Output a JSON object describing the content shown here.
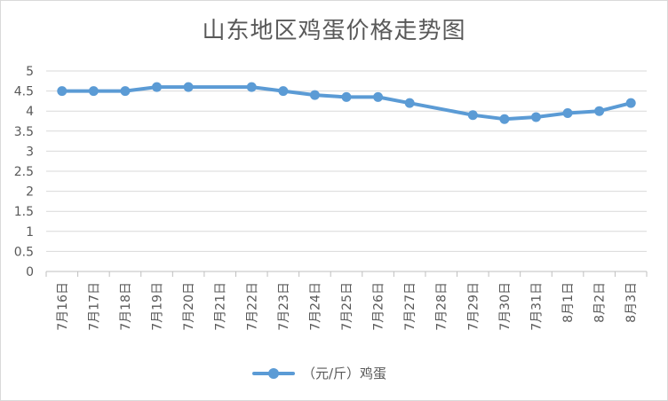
{
  "chart_data": {
    "type": "line",
    "title": "山东地区鸡蛋价格走势图",
    "categories": [
      "7月16日",
      "7月17日",
      "7月18日",
      "7月19日",
      "7月20日",
      "7月21日",
      "7月22日",
      "7月23日",
      "7月24日",
      "7月25日",
      "7月26日",
      "7月27日",
      "7月28日",
      "7月29日",
      "7月30日",
      "7月31日",
      "8月1日",
      "8月2日",
      "8月3日"
    ],
    "series": [
      {
        "name": "（元/斤）鸡蛋",
        "color": "#5b9bd5",
        "values": [
          4.5,
          4.5,
          4.5,
          4.6,
          4.6,
          null,
          4.6,
          4.5,
          4.4,
          4.35,
          4.35,
          4.2,
          null,
          3.9,
          3.8,
          3.85,
          3.95,
          4.0,
          4.2
        ]
      }
    ],
    "yticks": [
      "0",
      "0.5",
      "1",
      "1.5",
      "2",
      "2.5",
      "3",
      "3.5",
      "4",
      "4.5",
      "5"
    ],
    "ylim": [
      0,
      5
    ],
    "grid": true,
    "legend": "bottom"
  }
}
